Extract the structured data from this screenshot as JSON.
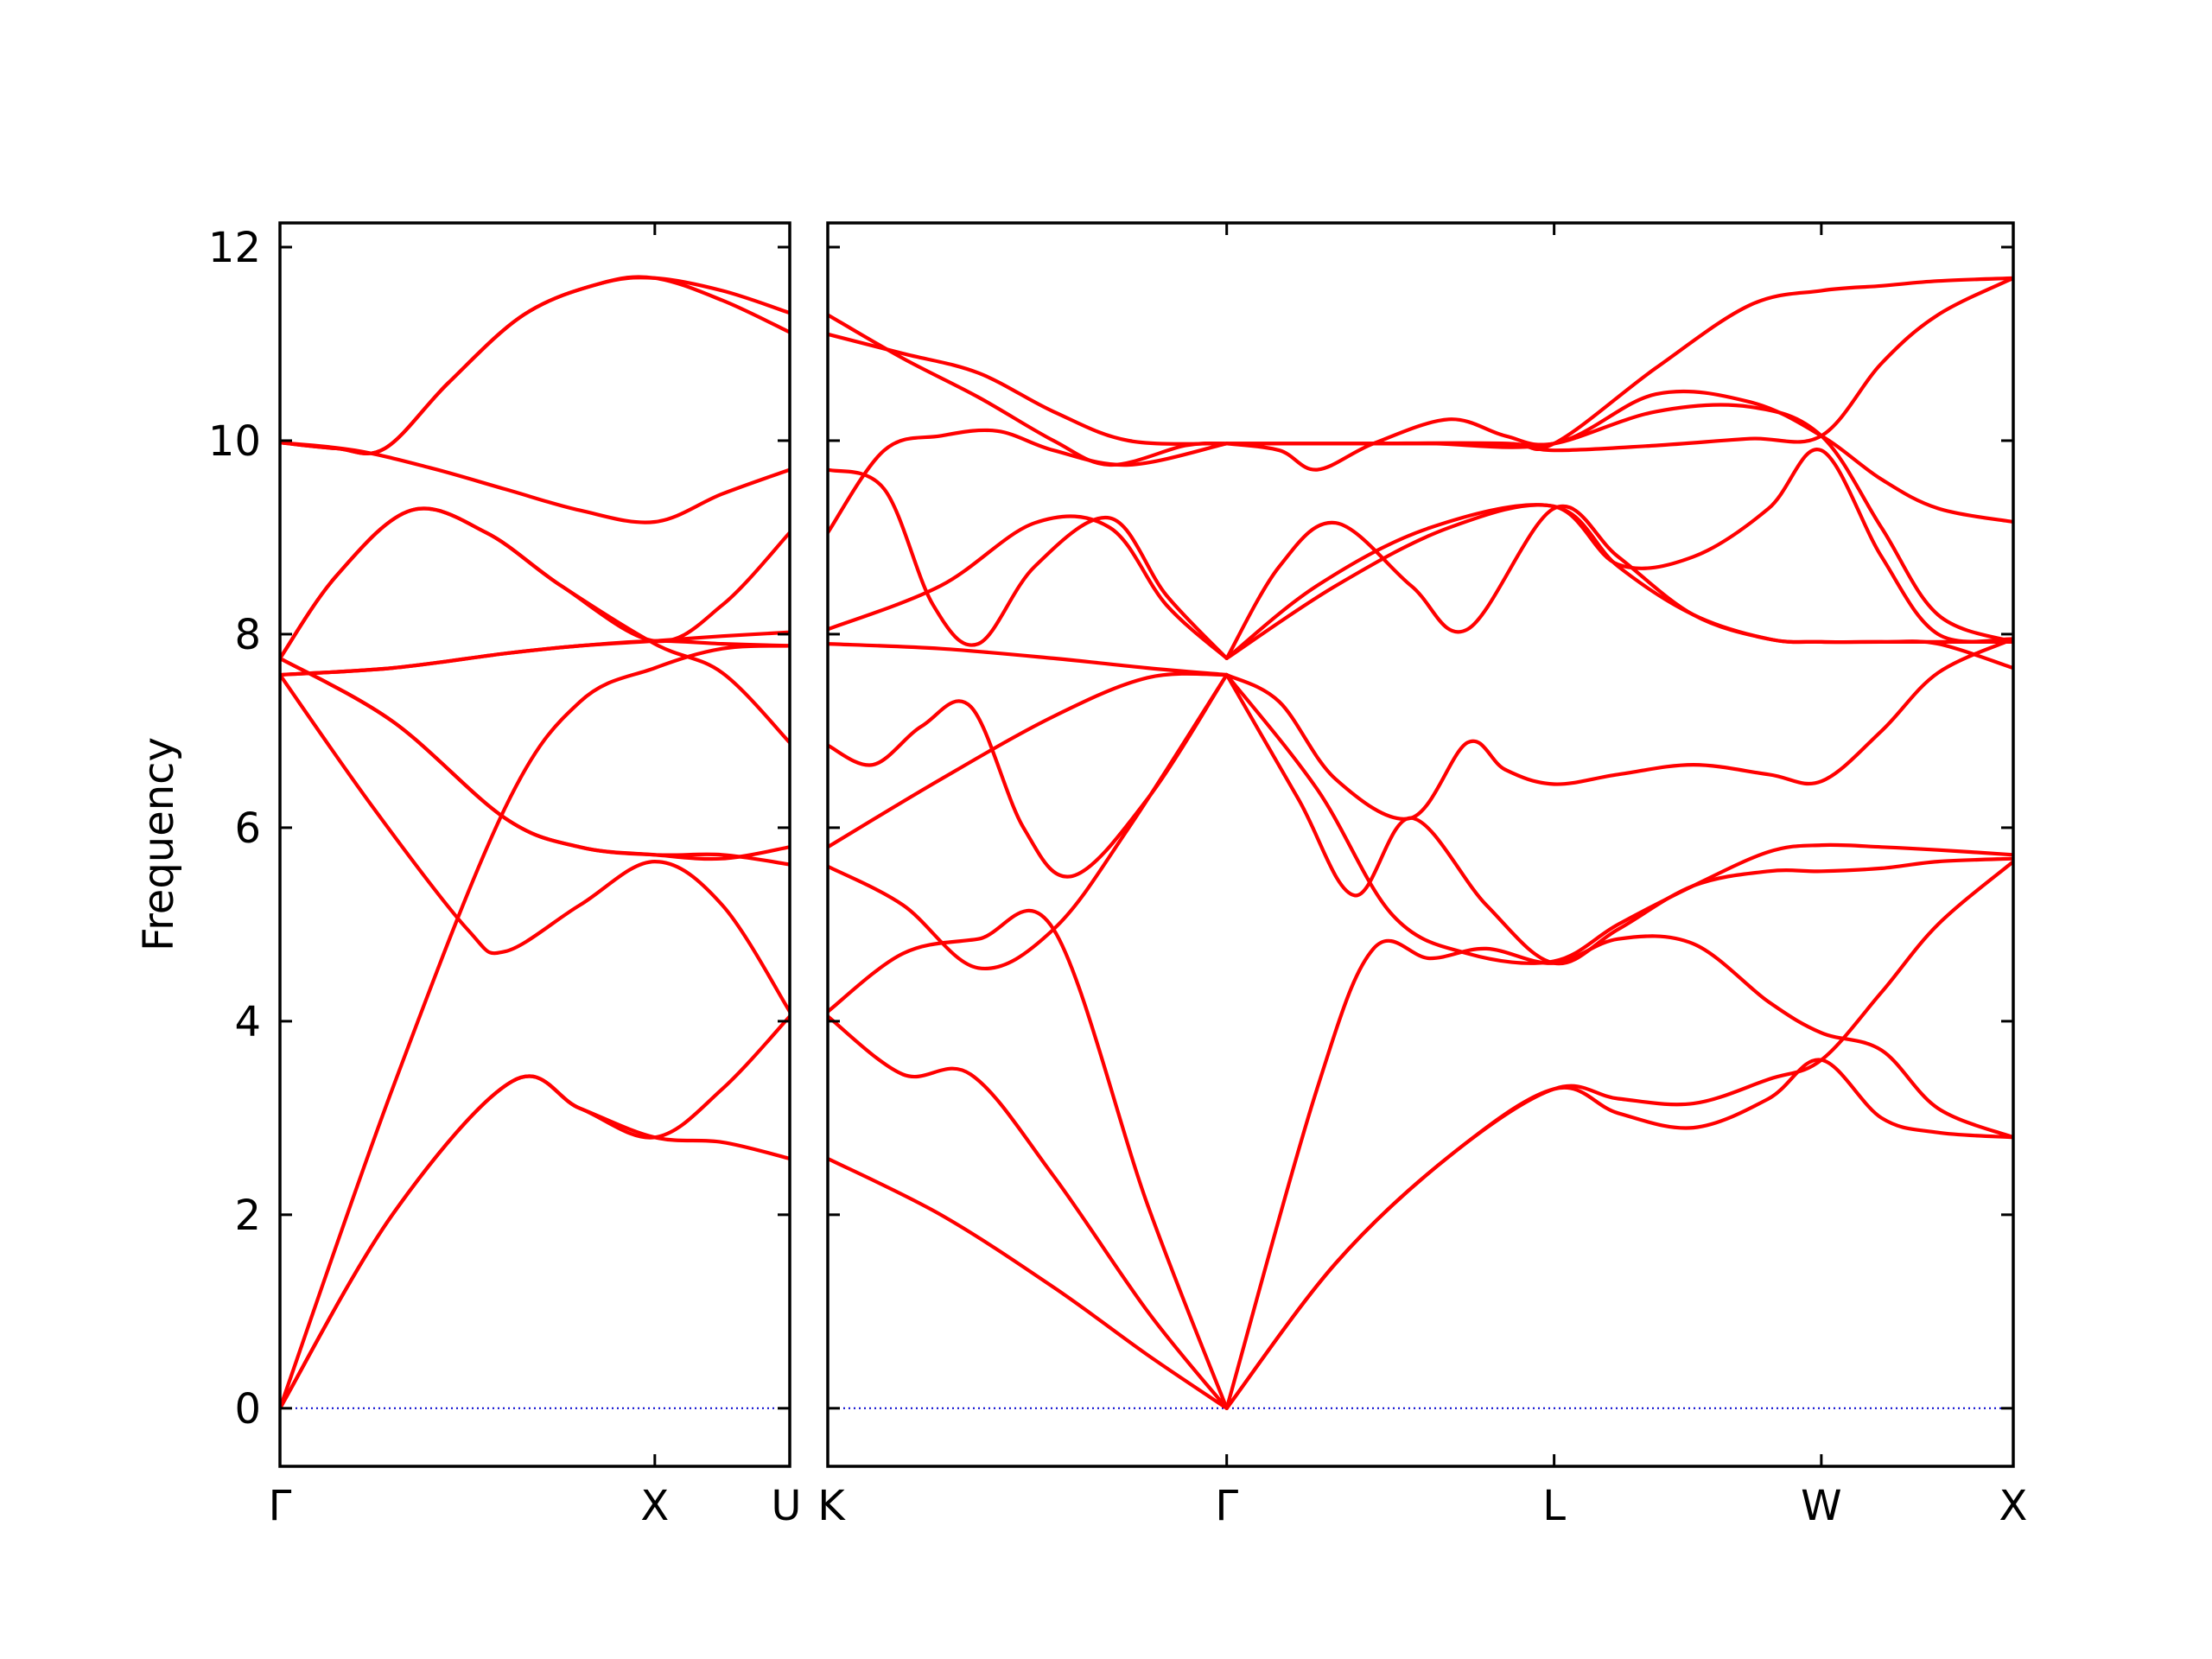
{
  "chart_data": {
    "type": "line",
    "title": "",
    "ylabel": "Frequency",
    "xlabel": "",
    "ylim": [
      -0.6,
      12.25
    ],
    "yticks": [
      0,
      2,
      4,
      6,
      8,
      10,
      12
    ],
    "grid": false,
    "colors": {
      "bands": "#ff0000",
      "zero_line": "#0000cc"
    },
    "panels": [
      {
        "xlim": [
          0,
          1.36
        ],
        "ticks": [
          {
            "pos": 0,
            "label": "Γ"
          },
          {
            "pos": 1.0,
            "label": "X"
          },
          {
            "pos": 1.36,
            "label": "U"
          }
        ],
        "series": [
          {
            "x": [
              0,
              0.3,
              0.62,
              0.8,
              1.0,
              1.18,
              1.36
            ],
            "y": [
              0,
              2.0,
              3.38,
              3.1,
              2.8,
              3.3,
              4.05
            ]
          },
          {
            "x": [
              0,
              0.3,
              0.62,
              0.8,
              1.0,
              1.18,
              1.36
            ],
            "y": [
              0,
              2.0,
              3.38,
              3.1,
              2.8,
              2.75,
              2.58
            ]
          },
          {
            "x": [
              0,
              0.3,
              0.6,
              0.8,
              1.0,
              1.18,
              1.36
            ],
            "y": [
              0,
              3.3,
              6.2,
              7.3,
              7.65,
              7.85,
              7.88
            ]
          },
          {
            "x": [
              0,
              0.25,
              0.5,
              0.6,
              0.8,
              1.0,
              1.18,
              1.36
            ],
            "y": [
              7.58,
              6.2,
              4.95,
              4.72,
              5.2,
              5.65,
              5.2,
              4.1
            ]
          },
          {
            "x": [
              0,
              0.3,
              0.6,
              0.8,
              1.0,
              1.18,
              1.36
            ],
            "y": [
              7.75,
              7.1,
              6.1,
              5.8,
              5.72,
              5.72,
              5.62
            ]
          },
          {
            "x": [
              0,
              0.3,
              0.6,
              0.8,
              1.0,
              1.18,
              1.36
            ],
            "y": [
              7.75,
              7.1,
              6.1,
              5.8,
              5.72,
              5.68,
              5.8
            ]
          },
          {
            "x": [
              0,
              0.3,
              0.6,
              0.8,
              1.0,
              1.18,
              1.36
            ],
            "y": [
              7.58,
              7.65,
              7.8,
              7.88,
              7.93,
              7.9,
              7.88
            ]
          },
          {
            "x": [
              0,
              0.3,
              0.6,
              0.8,
              1.0,
              1.18,
              1.36
            ],
            "y": [
              7.58,
              7.65,
              7.8,
              7.88,
              7.93,
              7.98,
              8.02
            ]
          },
          {
            "x": [
              0,
              0.15,
              0.35,
              0.55,
              0.75,
              1.0,
              1.18,
              1.36
            ],
            "y": [
              7.75,
              8.6,
              9.28,
              9.05,
              8.5,
              7.9,
              7.6,
              6.88
            ]
          },
          {
            "x": [
              0,
              0.15,
              0.35,
              0.55,
              0.75,
              1.0,
              1.18,
              1.36
            ],
            "y": [
              7.75,
              8.6,
              9.28,
              9.05,
              8.5,
              7.93,
              8.3,
              9.05
            ]
          },
          {
            "x": [
              0,
              0.2,
              0.4,
              0.6,
              0.8,
              1.0,
              1.18,
              1.36
            ],
            "y": [
              9.98,
              9.9,
              9.72,
              9.5,
              9.28,
              9.16,
              9.45,
              9.7
            ]
          },
          {
            "x": [
              0,
              0.15,
              0.28,
              0.45,
              0.65,
              0.85,
              1.0,
              1.18,
              1.36
            ],
            "y": [
              9.98,
              9.92,
              9.92,
              10.6,
              11.3,
              11.62,
              11.68,
              11.55,
              11.32
            ]
          },
          {
            "x": [
              0,
              0.15,
              0.28,
              0.45,
              0.65,
              0.85,
              1.0,
              1.18,
              1.36
            ],
            "y": [
              9.98,
              9.92,
              9.92,
              10.6,
              11.3,
              11.62,
              11.68,
              11.45,
              11.12
            ]
          }
        ]
      },
      {
        "xlim": [
          0,
          3.15
        ],
        "ticks": [
          {
            "pos": 0,
            "label": "K"
          },
          {
            "pos": 1.06,
            "label": "Γ"
          },
          {
            "pos": 1.93,
            "label": "L"
          },
          {
            "pos": 2.64,
            "label": "W"
          },
          {
            "pos": 3.15,
            "label": "X"
          }
        ],
        "series": [
          {
            "x": [
              0,
              0.3,
              0.6,
              0.85,
              1.06
            ],
            "y": [
              2.58,
              2.0,
              1.25,
              0.55,
              0
            ]
          },
          {
            "x": [
              0,
              0.2,
              0.38,
              0.6,
              0.85,
              1.06
            ],
            "y": [
              4.05,
              3.45,
              3.45,
              2.4,
              1.0,
              0
            ]
          },
          {
            "x": [
              0,
              0.2,
              0.4,
              0.6,
              0.85,
              1.06
            ],
            "y": [
              4.1,
              4.7,
              4.85,
              4.95,
              2.1,
              0
            ]
          },
          {
            "x": [
              1.06,
              1.3,
              1.45,
              1.6,
              1.75,
              1.93,
              2.1,
              2.3,
              2.5,
              2.64,
              2.8,
              2.95,
              3.15
            ],
            "y": [
              0,
              3.3,
              4.75,
              4.65,
              4.75,
              4.6,
              4.85,
              4.8,
              4.2,
              3.88,
              3.7,
              3.1,
              2.8
            ]
          },
          {
            "x": [
              1.06,
              1.35,
              1.65,
              1.93,
              2.1,
              2.3,
              2.5,
              2.64,
              2.8,
              2.95,
              3.15
            ],
            "y": [
              0,
              1.5,
              2.6,
              3.3,
              3.2,
              3.15,
              3.4,
              3.6,
              4.3,
              5.0,
              5.65
            ]
          },
          {
            "x": [
              1.06,
              1.35,
              1.65,
              1.93,
              2.1,
              2.3,
              2.5,
              2.64,
              2.8,
              2.95,
              3.15
            ],
            "y": [
              0,
              1.5,
              2.6,
              3.3,
              3.05,
              2.9,
              3.2,
              3.6,
              3.0,
              2.85,
              2.8
            ]
          },
          {
            "x": [
              0,
              0.2,
              0.4,
              0.6,
              0.8,
              1.06
            ],
            "y": [
              5.6,
              5.2,
              4.55,
              4.95,
              6.0,
              7.58
            ]
          },
          {
            "x": [
              0,
              0.3,
              0.6,
              0.85,
              1.06
            ],
            "y": [
              5.8,
              6.5,
              7.15,
              7.55,
              7.58
            ]
          },
          {
            "x": [
              0,
              0.12,
              0.25,
              0.38,
              0.52,
              0.65,
              0.85,
              1.06
            ],
            "y": [
              6.85,
              6.65,
              7.05,
              7.25,
              6.0,
              5.5,
              6.3,
              7.58
            ]
          },
          {
            "x": [
              1.06,
              1.25,
              1.4,
              1.55,
              1.75,
              1.93,
              2.1,
              2.3,
              2.5,
              2.64,
              2.8,
              2.95,
              3.15
            ],
            "y": [
              7.58,
              6.3,
              5.3,
              6.1,
              5.2,
              4.6,
              4.95,
              5.4,
              5.55,
              5.55,
              5.58,
              5.65,
              5.68
            ]
          },
          {
            "x": [
              1.06,
              1.3,
              1.5,
              1.7,
              1.93,
              2.1,
              2.3,
              2.5,
              2.64,
              2.8,
              2.95,
              3.15
            ],
            "y": [
              7.58,
              6.4,
              5.1,
              4.7,
              4.62,
              5.0,
              5.4,
              5.75,
              5.82,
              5.8,
              5.77,
              5.72
            ]
          },
          {
            "x": [
              1.06,
              1.2,
              1.35,
              1.55,
              1.7,
              1.8,
              1.93,
              2.1,
              2.3,
              2.5,
              2.64,
              2.8,
              2.95,
              3.15
            ],
            "y": [
              7.58,
              7.3,
              6.5,
              6.1,
              6.88,
              6.6,
              6.45,
              6.55,
              6.65,
              6.55,
              6.48,
              7.0,
              7.6,
              7.95
            ]
          },
          {
            "x": [
              0,
              0.3,
              0.6,
              0.85,
              1.06
            ],
            "y": [
              7.9,
              7.85,
              7.75,
              7.65,
              7.58
            ]
          },
          {
            "x": [
              0,
              0.15,
              0.28,
              0.4,
              0.55,
              0.75,
              0.9,
              1.06
            ],
            "y": [
              9.7,
              9.5,
              8.3,
              7.9,
              8.7,
              9.2,
              8.4,
              7.75
            ]
          },
          {
            "x": [
              1.06,
              1.2,
              1.35,
              1.55,
              1.7,
              1.93,
              2.1,
              2.3,
              2.5,
              2.64,
              2.8,
              2.95,
              3.15
            ],
            "y": [
              7.75,
              8.7,
              9.15,
              8.5,
              8.05,
              9.3,
              8.8,
              8.2,
              7.95,
              7.92,
              7.92,
              7.92,
              7.92
            ]
          },
          {
            "x": [
              1.06,
              1.3,
              1.6,
              1.93,
              2.1,
              2.3,
              2.5,
              2.64,
              2.8,
              2.95,
              3.15
            ],
            "y": [
              7.75,
              8.5,
              9.1,
              9.32,
              8.7,
              8.2,
              7.95,
              7.92,
              7.92,
              7.9,
              7.65
            ]
          },
          {
            "x": [
              0,
              0.3,
              0.55,
              0.75,
              0.9,
              1.06
            ],
            "y": [
              8.05,
              8.5,
              9.15,
              9.1,
              8.3,
              7.75
            ]
          },
          {
            "x": [
              1.06,
              1.35,
              1.65,
              1.93,
              2.1,
              2.3,
              2.5,
              2.64,
              2.8,
              2.95,
              3.15
            ],
            "y": [
              7.75,
              8.5,
              9.1,
              9.32,
              8.72,
              8.8,
              9.3,
              9.9,
              8.8,
              8.0,
              7.95
            ]
          },
          {
            "x": [
              0,
              0.15,
              0.3,
              0.45,
              0.6,
              0.8,
              1.06
            ],
            "y": [
              9.05,
              9.9,
              10.05,
              10.1,
              9.9,
              9.75,
              9.97
            ]
          },
          {
            "x": [
              0,
              0.2,
              0.4,
              0.6,
              0.8,
              1.06
            ],
            "y": [
              11.1,
              10.9,
              10.7,
              10.3,
              10.0,
              9.97
            ]
          },
          {
            "x": [
              0,
              0.2,
              0.4,
              0.6,
              0.75,
              0.95,
              1.06
            ],
            "y": [
              11.3,
              10.85,
              10.45,
              10.0,
              9.75,
              9.95,
              9.97
            ]
          },
          {
            "x": [
              1.06,
              1.2,
              1.4,
              1.6,
              1.93,
              2.2,
              2.45,
              2.64,
              2.8,
              2.95,
              3.15
            ],
            "y": [
              9.97,
              9.97,
              9.97,
              9.97,
              9.97,
              10.48,
              10.4,
              10.05,
              9.6,
              9.3,
              9.16
            ]
          },
          {
            "x": [
              1.06,
              1.2,
              1.3,
              1.45,
              1.65,
              1.8,
              1.93,
              2.2,
              2.45,
              2.64,
              2.8,
              2.95,
              3.15
            ],
            "y": [
              9.97,
              9.9,
              9.7,
              9.97,
              10.22,
              10.05,
              9.97,
              10.3,
              10.35,
              10.05,
              9.1,
              8.2,
              7.92
            ]
          },
          {
            "x": [
              1.06,
              1.4,
              1.8,
              1.93,
              2.2,
              2.45,
              2.64,
              2.8,
              2.95,
              3.15
            ],
            "y": [
              9.97,
              9.97,
              9.97,
              9.97,
              10.75,
              11.4,
              11.55,
              11.6,
              11.65,
              11.68
            ]
          },
          {
            "x": [
              1.06,
              1.4,
              1.8,
              1.93,
              2.2,
              2.45,
              2.64,
              2.8,
              2.95,
              3.15
            ],
            "y": [
              9.97,
              9.97,
              9.97,
              9.9,
              9.95,
              10.02,
              10.05,
              10.8,
              11.3,
              11.68
            ]
          }
        ]
      }
    ]
  }
}
